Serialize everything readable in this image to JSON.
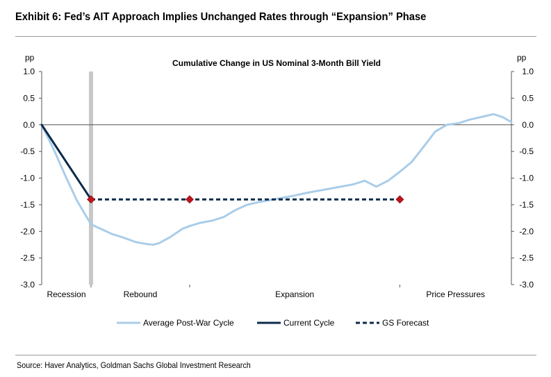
{
  "header": {
    "title": "Exhibit 6: Fed’s AIT Approach Implies Unchanged Rates through “Expansion” Phase"
  },
  "footer": {
    "source": "Source: Haver Analytics, Goldman Sachs Global Investment Research"
  },
  "colors": {
    "average": "#a9cde9",
    "current": "#0c2a4a",
    "forecast": "#0c2a4a",
    "marker": "#c0141b",
    "recession_band": "#c8c8c8"
  },
  "chart_data": {
    "type": "line",
    "title": "Cumulative Change in US Nominal 3-Month Bill Yield",
    "ylabel_left": "pp",
    "ylabel_right": "pp",
    "ylim": [
      -3.0,
      1.0
    ],
    "yticks": [
      1.0,
      0.5,
      0.0,
      -0.5,
      -1.0,
      -1.5,
      -2.0,
      -2.5,
      -3.0
    ],
    "ytick_labels": [
      "1.0",
      "0.5",
      "0.0",
      "-0.5",
      "-1.0",
      "-1.5",
      "-2.0",
      "-2.5",
      "-3.0"
    ],
    "xlim": [
      0,
      40
    ],
    "phases": [
      "Recession",
      "Rebound",
      "Expansion",
      "Price Pressures"
    ],
    "phase_boundaries": [
      4.2,
      12.6,
      30.5
    ],
    "recession_marker_x": 4.2,
    "series": [
      {
        "name": "Average Post-War Cycle",
        "style": "solid-light",
        "x": [
          0,
          1,
          2,
          3,
          4.2,
          5,
          6,
          7,
          8,
          9,
          9.5,
          10,
          11,
          12,
          12.6,
          13.5,
          14.5,
          15.5,
          16.5,
          17.5,
          18.5,
          19.5,
          20.5,
          21.5,
          22.5,
          23.5,
          24.5,
          25.5,
          26.5,
          27.5,
          28.5,
          29.5,
          30.5,
          31.5,
          32.5,
          33.5,
          34.5,
          35.5,
          36.5,
          37.5,
          38.5,
          39.3,
          40
        ],
        "values": [
          0,
          -0.45,
          -0.95,
          -1.42,
          -1.87,
          -1.95,
          -2.05,
          -2.12,
          -2.2,
          -2.24,
          -2.25,
          -2.22,
          -2.1,
          -1.95,
          -1.9,
          -1.84,
          -1.8,
          -1.73,
          -1.6,
          -1.5,
          -1.45,
          -1.41,
          -1.37,
          -1.33,
          -1.28,
          -1.24,
          -1.2,
          -1.16,
          -1.12,
          -1.05,
          -1.16,
          -1.05,
          -0.88,
          -0.7,
          -0.42,
          -0.13,
          0.0,
          0.03,
          0.1,
          0.15,
          0.2,
          0.14,
          0.05
        ]
      },
      {
        "name": "Current Cycle",
        "style": "solid-dark",
        "x": [
          0,
          4.2
        ],
        "values": [
          0,
          -1.4
        ]
      },
      {
        "name": "GS Forecast",
        "style": "dashed-dark",
        "x": [
          4.2,
          30.5
        ],
        "values": [
          -1.4,
          -1.4
        ]
      }
    ],
    "forecast_markers": {
      "x": [
        4.2,
        12.6,
        30.5
      ],
      "values": [
        -1.4,
        -1.4,
        -1.4
      ]
    },
    "legend": {
      "position": "bottom",
      "entries": [
        "Average Post-War Cycle",
        "Current Cycle",
        "GS Forecast"
      ]
    }
  }
}
